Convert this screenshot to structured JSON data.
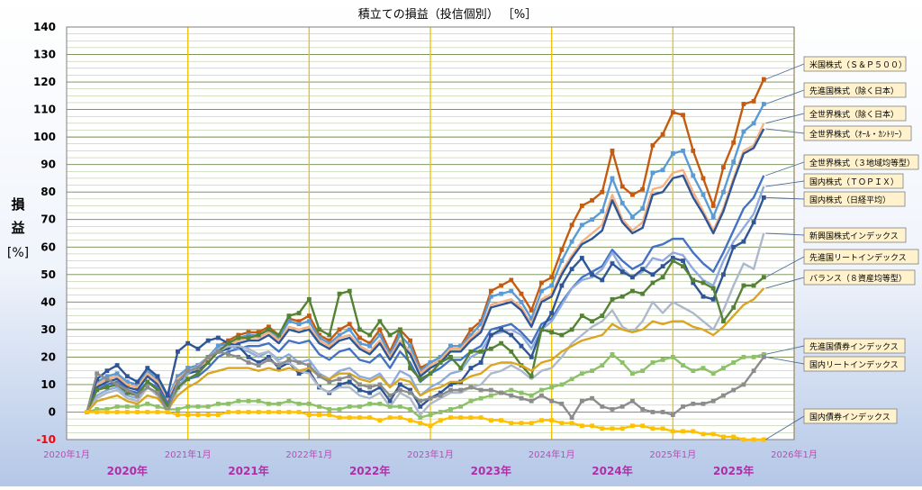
{
  "chart_data": {
    "type": "line",
    "title": "積立ての損益（投信個別） ［%］",
    "ylabel_chars": [
      "損",
      "益",
      "[%]"
    ],
    "ylim": [
      -10,
      140
    ],
    "yticks": [
      -10,
      0,
      10,
      20,
      30,
      40,
      50,
      60,
      70,
      80,
      90,
      100,
      110,
      120,
      130,
      140
    ],
    "grid": true,
    "x_start": "2020-01",
    "x_end": "2026-01",
    "x_tick_labels": [
      "2020年1月",
      "2021年1月",
      "2022年1月",
      "2023年1月",
      "2024年1月",
      "2025年1月",
      "2026年1月"
    ],
    "year_labels": [
      "2020年",
      "2021年",
      "2022年",
      "2023年",
      "2024年",
      "2025年"
    ],
    "series_start": "2020-03",
    "series": [
      {
        "name": "米国株式（Ｓ＆Ｐ５００）",
        "color": "#C55A11",
        "marker": "square",
        "values": [
          0,
          10,
          12,
          13,
          10,
          9,
          14,
          11,
          4,
          12,
          16,
          17,
          20,
          24,
          26,
          28,
          29,
          29,
          31,
          28,
          34,
          33,
          35,
          28,
          26,
          30,
          32,
          27,
          25,
          30,
          22,
          30,
          26,
          16,
          18,
          20,
          24,
          24,
          30,
          33,
          44,
          46,
          48,
          43,
          37,
          47,
          49,
          59,
          68,
          75,
          77,
          80,
          95,
          82,
          79,
          81,
          97,
          101,
          109,
          108,
          95,
          85,
          75,
          89,
          98,
          112,
          113,
          121
        ]
      },
      {
        "name": "先進国株式（除く日本）",
        "color": "#5B9BD5",
        "marker": "square",
        "values": [
          0,
          11,
          13,
          14,
          11,
          10,
          15,
          12,
          5,
          13,
          16,
          17,
          20,
          24,
          25,
          27,
          28,
          28,
          30,
          27,
          33,
          32,
          33,
          27,
          25,
          28,
          30,
          25,
          24,
          28,
          21,
          28,
          24,
          15,
          18,
          20,
          24,
          24,
          28,
          32,
          42,
          43,
          44,
          40,
          34,
          44,
          46,
          55,
          62,
          68,
          70,
          73,
          85,
          76,
          71,
          74,
          87,
          88,
          94,
          95,
          86,
          79,
          71,
          80,
          91,
          102,
          105,
          112
        ]
      },
      {
        "name": "全世界株式（除く日本）",
        "color": "#F4B183",
        "marker": "none",
        "values": [
          0,
          10,
          12,
          13,
          10,
          9,
          14,
          11,
          4,
          12,
          15,
          16,
          19,
          23,
          24,
          26,
          27,
          27,
          29,
          26,
          31,
          30,
          31,
          26,
          24,
          27,
          28,
          24,
          22,
          26,
          20,
          26,
          22,
          14,
          17,
          19,
          23,
          23,
          27,
          30,
          39,
          40,
          41,
          38,
          32,
          41,
          43,
          51,
          57,
          62,
          65,
          68,
          79,
          70,
          66,
          69,
          81,
          82,
          87,
          88,
          80,
          73,
          66,
          74,
          85,
          95,
          97,
          105
        ]
      },
      {
        "name": "全世界株式（ｵｰﾙ・ｶﾝﾄﾘｰ）",
        "color": "#2E5597",
        "marker": "none",
        "values": [
          0,
          9,
          11,
          12,
          9,
          8,
          13,
          10,
          3,
          11,
          14,
          15,
          18,
          22,
          23,
          25,
          26,
          26,
          28,
          25,
          30,
          29,
          30,
          25,
          23,
          26,
          27,
          23,
          21,
          25,
          19,
          25,
          21,
          13,
          16,
          18,
          22,
          22,
          26,
          29,
          38,
          39,
          40,
          37,
          31,
          40,
          42,
          50,
          56,
          61,
          63,
          66,
          77,
          69,
          65,
          67,
          79,
          80,
          85,
          86,
          78,
          72,
          65,
          73,
          84,
          94,
          96,
          103
        ]
      },
      {
        "name": "全世界株式（３地域均等型）",
        "color": "#4472C4",
        "marker": "none",
        "values": [
          0,
          8,
          10,
          11,
          8,
          7,
          11,
          9,
          3,
          10,
          12,
          13,
          16,
          20,
          22,
          23,
          24,
          24,
          25,
          22,
          26,
          25,
          26,
          21,
          19,
          22,
          23,
          19,
          18,
          21,
          16,
          22,
          18,
          11,
          14,
          16,
          19,
          19,
          22,
          24,
          30,
          31,
          32,
          29,
          25,
          32,
          34,
          40,
          45,
          49,
          51,
          53,
          59,
          55,
          52,
          54,
          60,
          61,
          63,
          63,
          58,
          54,
          51,
          58,
          66,
          74,
          78,
          86
        ]
      },
      {
        "name": "国内株式（ＴＯＰＩＸ）",
        "color": "#8FAADC",
        "marker": "none",
        "values": [
          0,
          6,
          8,
          9,
          6,
          5,
          9,
          7,
          2,
          9,
          14,
          17,
          20,
          23,
          24,
          23,
          22,
          20,
          22,
          19,
          21,
          18,
          19,
          14,
          12,
          15,
          16,
          13,
          12,
          14,
          9,
          15,
          13,
          6,
          9,
          11,
          14,
          15,
          20,
          22,
          28,
          29,
          30,
          28,
          23,
          30,
          33,
          39,
          45,
          48,
          49,
          52,
          58,
          52,
          49,
          51,
          56,
          55,
          58,
          57,
          52,
          48,
          46,
          55,
          62,
          67,
          72,
          82
        ]
      },
      {
        "name": "国内株式（日経平均）",
        "color": "#2F5597",
        "marker": "square",
        "values": [
          0,
          12,
          15,
          17,
          13,
          11,
          16,
          13,
          6,
          22,
          25,
          23,
          26,
          27,
          25,
          24,
          20,
          18,
          20,
          16,
          18,
          14,
          15,
          9,
          7,
          10,
          11,
          8,
          7,
          9,
          4,
          10,
          8,
          2,
          5,
          7,
          10,
          11,
          16,
          18,
          28,
          30,
          28,
          24,
          20,
          30,
          36,
          46,
          52,
          56,
          50,
          48,
          54,
          51,
          49,
          52,
          50,
          53,
          56,
          55,
          47,
          42,
          41,
          50,
          60,
          62,
          69,
          78
        ]
      },
      {
        "name": "新興国株式インデックス",
        "color": "#ADB9CA",
        "marker": "none",
        "values": [
          0,
          5,
          7,
          8,
          5,
          4,
          9,
          6,
          0,
          8,
          12,
          14,
          18,
          22,
          24,
          24,
          23,
          21,
          22,
          18,
          18,
          15,
          14,
          9,
          7,
          9,
          9,
          6,
          5,
          7,
          2,
          7,
          5,
          -1,
          3,
          5,
          7,
          7,
          9,
          10,
          14,
          15,
          17,
          15,
          12,
          15,
          16,
          20,
          25,
          28,
          31,
          33,
          37,
          31,
          29,
          33,
          40,
          36,
          40,
          38,
          36,
          33,
          30,
          37,
          46,
          54,
          52,
          65
        ]
      },
      {
        "name": "先進国リートインデックス",
        "color": "#548235",
        "marker": "square",
        "values": [
          0,
          8,
          9,
          10,
          7,
          6,
          11,
          8,
          2,
          9,
          12,
          14,
          18,
          22,
          25,
          27,
          27,
          28,
          30,
          28,
          35,
          36,
          41,
          30,
          28,
          43,
          44,
          30,
          28,
          33,
          28,
          30,
          16,
          12,
          14,
          18,
          20,
          16,
          22,
          22,
          23,
          25,
          22,
          17,
          13,
          30,
          29,
          28,
          30,
          35,
          33,
          35,
          41,
          42,
          44,
          43,
          47,
          49,
          55,
          53,
          48,
          47,
          45,
          33,
          38,
          46,
          46,
          49
        ]
      },
      {
        "name": "バランス（８資産均等型）",
        "color": "#DAA520",
        "marker": "none",
        "values": [
          0,
          4,
          5,
          6,
          4,
          3,
          6,
          5,
          1,
          6,
          9,
          11,
          14,
          15,
          16,
          16,
          16,
          15,
          16,
          15,
          16,
          15,
          16,
          13,
          12,
          14,
          14,
          12,
          11,
          13,
          9,
          12,
          11,
          6,
          8,
          9,
          11,
          11,
          13,
          14,
          17,
          18,
          18,
          17,
          15,
          18,
          19,
          22,
          24,
          26,
          27,
          28,
          32,
          30,
          29,
          30,
          33,
          32,
          33,
          33,
          31,
          30,
          28,
          31,
          35,
          39,
          41,
          45
        ]
      },
      {
        "name": "先進国債券インデックス",
        "color": "#8CC168",
        "marker": "square",
        "values": [
          0,
          1,
          1,
          2,
          2,
          2,
          3,
          2,
          1,
          1,
          2,
          2,
          2,
          3,
          3,
          4,
          4,
          4,
          3,
          3,
          4,
          3,
          3,
          2,
          1,
          1,
          2,
          2,
          3,
          3,
          2,
          2,
          1,
          -2,
          -1,
          0,
          1,
          2,
          4,
          5,
          6,
          7,
          8,
          7,
          6,
          8,
          9,
          10,
          12,
          14,
          15,
          17,
          21,
          18,
          14,
          15,
          18,
          19,
          20,
          17,
          15,
          16,
          14,
          16,
          18,
          20,
          20,
          21
        ]
      },
      {
        "name": "国内リートインデックス",
        "color": "#8C8C8C",
        "marker": "square",
        "values": [
          0,
          14,
          12,
          10,
          8,
          6,
          9,
          7,
          0,
          11,
          15,
          16,
          20,
          22,
          21,
          20,
          18,
          17,
          19,
          17,
          19,
          18,
          17,
          13,
          11,
          12,
          13,
          10,
          9,
          10,
          6,
          8,
          7,
          4,
          5,
          6,
          8,
          8,
          9,
          8,
          8,
          7,
          6,
          5,
          4,
          6,
          4,
          3,
          -2,
          4,
          5,
          2,
          1,
          2,
          4,
          1,
          0,
          0,
          -1,
          2,
          3,
          3,
          4,
          6,
          8,
          10,
          15,
          20
        ]
      },
      {
        "name": "国内債券インデックス",
        "color": "#FFC000",
        "marker": "square",
        "values": [
          0,
          0,
          0,
          0,
          0,
          0,
          0,
          0,
          0,
          -1,
          -1,
          -1,
          -1,
          -1,
          0,
          0,
          0,
          0,
          0,
          0,
          0,
          0,
          -1,
          -1,
          -1,
          -2,
          -2,
          -2,
          -2,
          -3,
          -2,
          -2,
          -3,
          -4,
          -5,
          -3,
          -2,
          -2,
          -2,
          -2,
          -3,
          -3,
          -4,
          -4,
          -4,
          -3,
          -3,
          -4,
          -4,
          -5,
          -5,
          -6,
          -6,
          -6,
          -5,
          -5,
          -6,
          -6,
          -7,
          -7,
          -7,
          -8,
          -8,
          -9,
          -9,
          -10,
          -10,
          -10
        ]
      }
    ]
  }
}
